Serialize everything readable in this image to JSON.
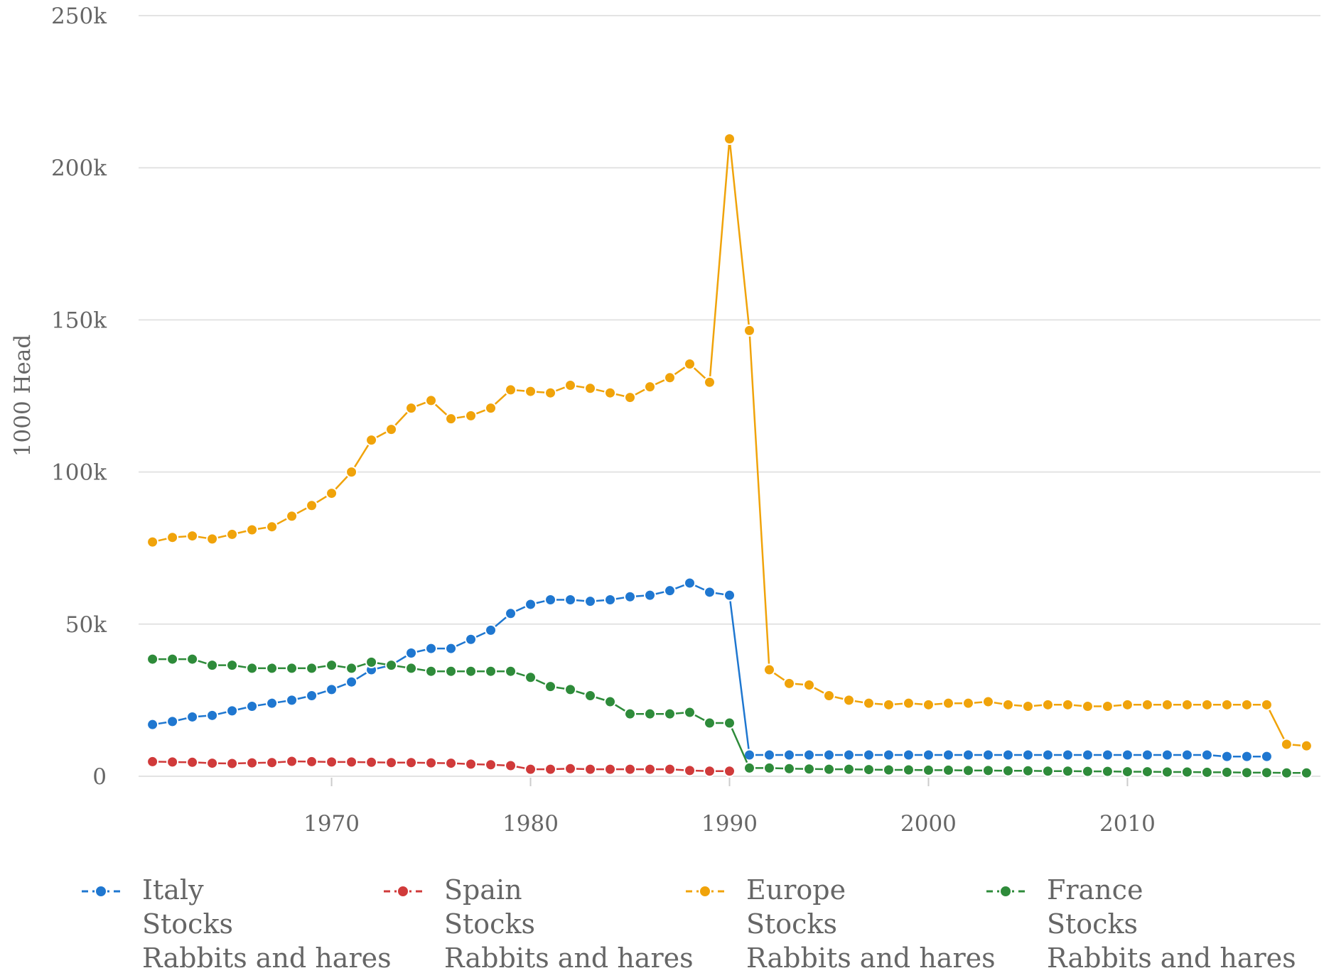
{
  "chart_data": {
    "type": "line",
    "xlabel": "",
    "ylabel": "1000 Head",
    "xlim": [
      1960.3,
      2019.7
    ],
    "ylim": [
      0,
      250000
    ],
    "x_ticks": [
      1970,
      1980,
      1990,
      2000,
      2010
    ],
    "x_tick_labels": [
      "1970",
      "1980",
      "1990",
      "2000",
      "2010"
    ],
    "y_ticks": [
      0,
      50000,
      100000,
      150000,
      200000,
      250000
    ],
    "y_tick_labels": [
      "0",
      "50k",
      "100k",
      "150k",
      "200k",
      "250k"
    ],
    "grid": true,
    "legend_position": "bottom",
    "series": [
      {
        "name": "Italy",
        "legend_lines": [
          "Italy",
          "Stocks",
          "Rabbits and hares"
        ],
        "color": "#1f77d0",
        "x": [
          1961,
          1962,
          1963,
          1964,
          1965,
          1966,
          1967,
          1968,
          1969,
          1970,
          1971,
          1972,
          1973,
          1974,
          1975,
          1976,
          1977,
          1978,
          1979,
          1980,
          1981,
          1982,
          1983,
          1984,
          1985,
          1986,
          1987,
          1988,
          1989,
          1990,
          1991,
          1992,
          1993,
          1994,
          1995,
          1996,
          1997,
          1998,
          1999,
          2000,
          2001,
          2002,
          2003,
          2004,
          2005,
          2006,
          2007,
          2008,
          2009,
          2010,
          2011,
          2012,
          2013,
          2014,
          2015,
          2016,
          2017
        ],
        "values": [
          17000,
          18000,
          19500,
          20000,
          21500,
          23000,
          24000,
          25000,
          26500,
          28500,
          31000,
          35000,
          36500,
          40500,
          42000,
          42000,
          45000,
          48000,
          53500,
          56500,
          58000,
          58000,
          57500,
          58000,
          59000,
          59500,
          61000,
          63500,
          60500,
          59500,
          7000,
          7000,
          7000,
          7000,
          7000,
          7000,
          7000,
          7000,
          7000,
          7000,
          7000,
          7000,
          7000,
          7000,
          7000,
          7000,
          7000,
          7000,
          7000,
          7000,
          7000,
          7000,
          7000,
          7000,
          6500,
          6500,
          6500
        ]
      },
      {
        "name": "Spain",
        "legend_lines": [
          "Spain",
          "Stocks",
          "Rabbits and hares"
        ],
        "color": "#d03a3a",
        "x": [
          1961,
          1962,
          1963,
          1964,
          1965,
          1966,
          1967,
          1968,
          1969,
          1970,
          1971,
          1972,
          1973,
          1974,
          1975,
          1976,
          1977,
          1978,
          1979,
          1980,
          1981,
          1982,
          1983,
          1984,
          1985,
          1986,
          1987,
          1988,
          1989,
          1990
        ],
        "values": [
          4800,
          4700,
          4600,
          4300,
          4200,
          4400,
          4500,
          4900,
          4800,
          4700,
          4700,
          4600,
          4500,
          4500,
          4400,
          4300,
          4000,
          3800,
          3500,
          2300,
          2300,
          2500,
          2300,
          2300,
          2300,
          2300,
          2300,
          1900,
          1700,
          1700
        ]
      },
      {
        "name": "Europe",
        "legend_lines": [
          "Europe",
          "Stocks",
          "Rabbits and hares"
        ],
        "color": "#f0a30a",
        "x": [
          1961,
          1962,
          1963,
          1964,
          1965,
          1966,
          1967,
          1968,
          1969,
          1970,
          1971,
          1972,
          1973,
          1974,
          1975,
          1976,
          1977,
          1978,
          1979,
          1980,
          1981,
          1982,
          1983,
          1984,
          1985,
          1986,
          1987,
          1988,
          1989,
          1990,
          1991,
          1992,
          1993,
          1994,
          1995,
          1996,
          1997,
          1998,
          1999,
          2000,
          2001,
          2002,
          2003,
          2004,
          2005,
          2006,
          2007,
          2008,
          2009,
          2010,
          2011,
          2012,
          2013,
          2014,
          2015,
          2016,
          2017,
          2018,
          2019
        ],
        "values": [
          77000,
          78500,
          79000,
          78000,
          79500,
          81000,
          82000,
          85500,
          89000,
          93000,
          100000,
          110500,
          114000,
          121000,
          123500,
          117500,
          118500,
          121000,
          127000,
          126500,
          126000,
          128500,
          127500,
          126000,
          124500,
          128000,
          131000,
          135500,
          129500,
          209500,
          146500,
          35000,
          30500,
          30000,
          26500,
          25000,
          24000,
          23500,
          24000,
          23500,
          24000,
          24000,
          24500,
          23500,
          23000,
          23500,
          23500,
          23000,
          23000,
          23500,
          23500,
          23500,
          23500,
          23500,
          23500,
          23500,
          23500,
          10500,
          10000
        ]
      },
      {
        "name": "France",
        "legend_lines": [
          "France",
          "Stocks",
          "Rabbits and hares"
        ],
        "color": "#2e8b3a",
        "x": [
          1961,
          1962,
          1963,
          1964,
          1965,
          1966,
          1967,
          1968,
          1969,
          1970,
          1971,
          1972,
          1973,
          1974,
          1975,
          1976,
          1977,
          1978,
          1979,
          1980,
          1981,
          1982,
          1983,
          1984,
          1985,
          1986,
          1987,
          1988,
          1989,
          1990,
          1991,
          1992,
          1993,
          1994,
          1995,
          1996,
          1997,
          1998,
          1999,
          2000,
          2001,
          2002,
          2003,
          2004,
          2005,
          2006,
          2007,
          2008,
          2009,
          2010,
          2011,
          2012,
          2013,
          2014,
          2015,
          2016,
          2017,
          2018,
          2019
        ],
        "values": [
          38500,
          38500,
          38500,
          36500,
          36500,
          35500,
          35500,
          35500,
          35500,
          36500,
          35500,
          37500,
          36500,
          35500,
          34500,
          34500,
          34500,
          34500,
          34500,
          32500,
          29500,
          28500,
          26500,
          24500,
          20500,
          20500,
          20500,
          21000,
          17500,
          17500,
          2700,
          2700,
          2500,
          2400,
          2300,
          2300,
          2200,
          2100,
          2100,
          2000,
          2000,
          1900,
          1900,
          1800,
          1800,
          1700,
          1700,
          1600,
          1600,
          1500,
          1500,
          1400,
          1400,
          1300,
          1300,
          1200,
          1200,
          1100,
          1100
        ]
      }
    ]
  }
}
